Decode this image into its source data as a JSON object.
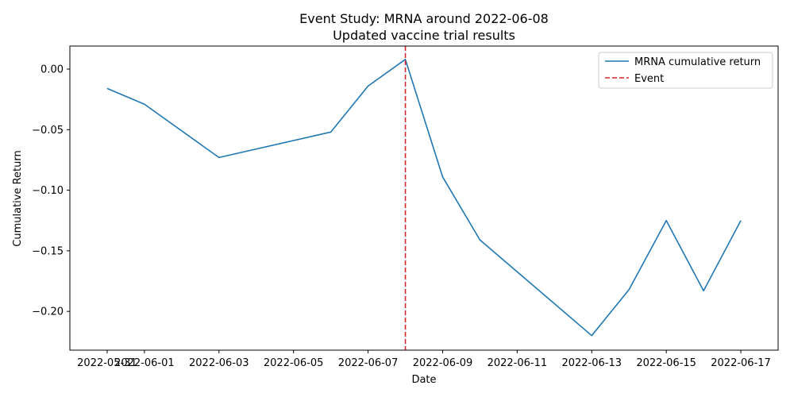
{
  "chart_data": {
    "type": "line",
    "title": "Event Study: MRNA around 2022-06-08",
    "subtitle": "Updated vaccine trial results",
    "xlabel": "Date",
    "ylabel": "Cumulative Return",
    "xlim": [
      "2022-05-30",
      "2022-06-18"
    ],
    "ylim": [
      -0.232,
      0.019
    ],
    "grid": false,
    "legend_position": "top-right",
    "x_ticks": [
      "2022-05-31",
      "2022-06-01",
      "2022-06-03",
      "2022-06-05",
      "2022-06-07",
      "2022-06-09",
      "2022-06-11",
      "2022-06-13",
      "2022-06-15",
      "2022-06-17"
    ],
    "x_tick_labels": [
      "2022-05-31",
      "2022-06-01",
      "2022-06-03",
      "2022-06-05",
      "2022-06-07",
      "2022-06-09",
      "2022-06-11",
      "2022-06-13",
      "2022-06-15",
      "2022-06-17"
    ],
    "y_ticks": [
      0.0,
      -0.05,
      -0.1,
      -0.15,
      -0.2
    ],
    "y_tick_labels": [
      "0.00",
      "−0.05",
      "−0.10",
      "−0.15",
      "−0.20"
    ],
    "series": [
      {
        "name": "MRNA cumulative return",
        "color": "#1f77b4",
        "style": "solid",
        "x": [
          "2022-05-31",
          "2022-06-01",
          "2022-06-03",
          "2022-06-06",
          "2022-06-07",
          "2022-06-08",
          "2022-06-09",
          "2022-06-10",
          "2022-06-13",
          "2022-06-14",
          "2022-06-15",
          "2022-06-16",
          "2022-06-17"
        ],
        "y": [
          -0.016,
          -0.029,
          -0.073,
          -0.052,
          -0.014,
          0.008,
          -0.089,
          -0.141,
          -0.22,
          -0.182,
          -0.125,
          -0.183,
          -0.125
        ]
      }
    ],
    "event_line": {
      "name": "Event",
      "x": "2022-06-08",
      "color": "#d62728",
      "style": "dashed"
    }
  }
}
